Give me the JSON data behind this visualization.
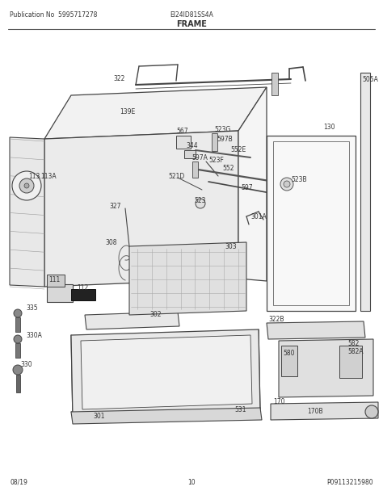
{
  "title": "FRAME",
  "pub_no": "Publication No  5995717278",
  "model": "EI24ID81SS4A",
  "page": "10",
  "date": "08/19",
  "photo_ref": "P09113215980",
  "bg_color": "#ffffff",
  "lc": "#444444",
  "tc": "#333333",
  "figsize": [
    4.74,
    6.13
  ],
  "dpi": 100
}
